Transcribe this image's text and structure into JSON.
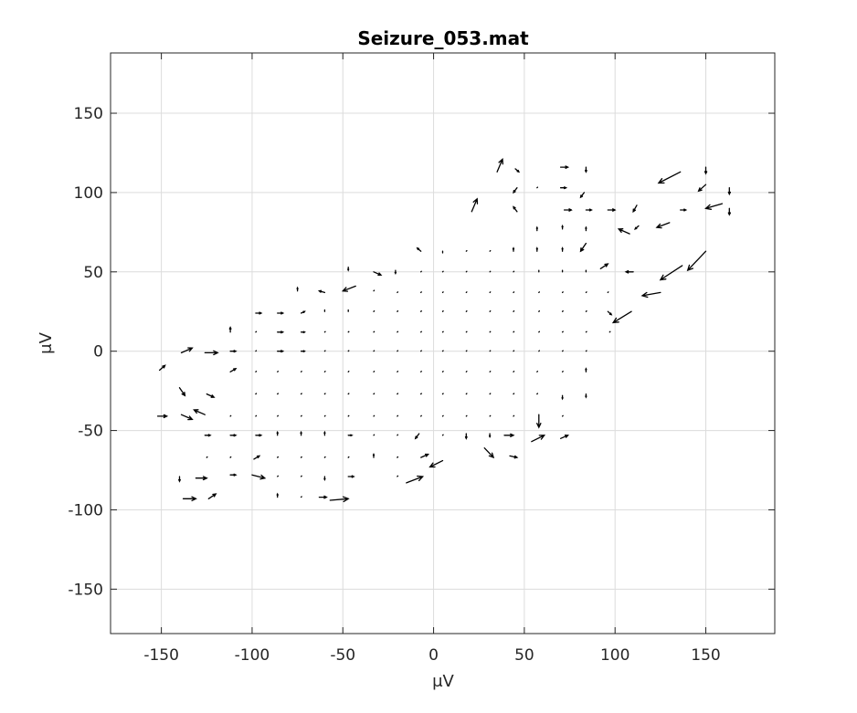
{
  "chart_data": {
    "type": "quiver",
    "title": "Seizure_053.mat",
    "xlabel": "μV",
    "ylabel": "μV",
    "xlim": [
      -178,
      188
    ],
    "ylim": [
      -178,
      188
    ],
    "xticks": [
      -150,
      -100,
      -50,
      0,
      50,
      100,
      150
    ],
    "yticks": [
      -150,
      -100,
      -50,
      0,
      50,
      100,
      150
    ],
    "xtick_labels": [
      "-150",
      "-100",
      "-50",
      "0",
      "50",
      "100",
      "150"
    ],
    "ytick_labels": [
      "-150",
      "-100",
      "-50",
      "0",
      "50",
      "100",
      "150"
    ],
    "grid": true,
    "colors": {
      "arrow": "#000000",
      "grid": "#dcdcdc",
      "axes": "#262626"
    },
    "vectors": [
      {
        "x": 35,
        "y": 113,
        "u": 3,
        "v": 8
      },
      {
        "x": 45,
        "y": 115,
        "u": 2,
        "v": -2
      },
      {
        "x": 70,
        "y": 116,
        "u": 4,
        "v": 0
      },
      {
        "x": 84,
        "y": 116,
        "u": 0,
        "v": -3
      },
      {
        "x": 136,
        "y": 113,
        "u": -12,
        "v": -7
      },
      {
        "x": 150,
        "y": 116,
        "u": 0,
        "v": -4
      },
      {
        "x": 46,
        "y": 103,
        "u": -2,
        "v": -3
      },
      {
        "x": 57,
        "y": 103,
        "u": 0,
        "v": 0
      },
      {
        "x": 70,
        "y": 103,
        "u": 3,
        "v": 0
      },
      {
        "x": 83,
        "y": 100,
        "u": -2,
        "v": -3
      },
      {
        "x": 150,
        "y": 105,
        "u": -4,
        "v": -4
      },
      {
        "x": 163,
        "y": 103,
        "u": 0,
        "v": -4
      },
      {
        "x": 21,
        "y": 88,
        "u": 3,
        "v": 8
      },
      {
        "x": 46,
        "y": 88,
        "u": -2,
        "v": 3
      },
      {
        "x": 72,
        "y": 89,
        "u": 4,
        "v": 0
      },
      {
        "x": 84,
        "y": 89,
        "u": 3,
        "v": 0
      },
      {
        "x": 96,
        "y": 89,
        "u": 4,
        "v": 0
      },
      {
        "x": 108,
        "y": 74,
        "u": -6,
        "v": 3
      },
      {
        "x": 112,
        "y": 92,
        "u": -2,
        "v": -4
      },
      {
        "x": 130,
        "y": 81,
        "u": -7,
        "v": -3
      },
      {
        "x": 136,
        "y": 89,
        "u": 3,
        "v": 0
      },
      {
        "x": 159,
        "y": 93,
        "u": -9,
        "v": -3
      },
      {
        "x": 163,
        "y": 90,
        "u": 0,
        "v": -4
      },
      {
        "x": 57,
        "y": 76,
        "u": 0,
        "v": 2
      },
      {
        "x": 71,
        "y": 77,
        "u": 0,
        "v": 2
      },
      {
        "x": 84,
        "y": 76,
        "u": 0,
        "v": 2
      },
      {
        "x": 113,
        "y": 79,
        "u": -2,
        "v": -2
      },
      {
        "x": -7,
        "y": 63,
        "u": -2,
        "v": 2
      },
      {
        "x": 5,
        "y": 62,
        "u": 0,
        "v": 1
      },
      {
        "x": 18,
        "y": 63,
        "u": 0,
        "v": 0
      },
      {
        "x": 31,
        "y": 63,
        "u": 0,
        "v": 0
      },
      {
        "x": 44,
        "y": 63,
        "u": 0,
        "v": 2
      },
      {
        "x": 57,
        "y": 63,
        "u": 0,
        "v": 2
      },
      {
        "x": 71,
        "y": 63,
        "u": 0,
        "v": 2
      },
      {
        "x": 84,
        "y": 68,
        "u": -3,
        "v": -5
      },
      {
        "x": 150,
        "y": 63,
        "u": -10,
        "v": -12
      },
      {
        "x": 92,
        "y": 52,
        "u": 4,
        "v": 3
      },
      {
        "x": 110,
        "y": 50,
        "u": -4,
        "v": 0
      },
      {
        "x": 137,
        "y": 54,
        "u": -12,
        "v": -9
      },
      {
        "x": -47,
        "y": 53,
        "u": 0,
        "v": -2
      },
      {
        "x": -33,
        "y": 50,
        "u": 4,
        "v": -2
      },
      {
        "x": -21,
        "y": 51,
        "u": 0,
        "v": -2
      },
      {
        "x": -7,
        "y": 50,
        "u": 0,
        "v": 0
      },
      {
        "x": 5,
        "y": 50,
        "u": 0,
        "v": 0
      },
      {
        "x": 18,
        "y": 50,
        "u": 0,
        "v": 0
      },
      {
        "x": 31,
        "y": 50,
        "u": 0,
        "v": 0
      },
      {
        "x": 44,
        "y": 50,
        "u": 0,
        "v": 0
      },
      {
        "x": 58,
        "y": 50,
        "u": 0,
        "v": 1
      },
      {
        "x": 71,
        "y": 50,
        "u": 0,
        "v": 1
      },
      {
        "x": 84,
        "y": 50,
        "u": 0,
        "v": 1
      },
      {
        "x": 125,
        "y": 37,
        "u": -10,
        "v": -2
      },
      {
        "x": -75,
        "y": 38,
        "u": 0,
        "v": 2
      },
      {
        "x": -60,
        "y": 37,
        "u": -3,
        "v": 1
      },
      {
        "x": -43,
        "y": 41,
        "u": -7,
        "v": -3
      },
      {
        "x": -33,
        "y": 38,
        "u": 0,
        "v": 0
      },
      {
        "x": -20,
        "y": 37,
        "u": 0,
        "v": 0
      },
      {
        "x": -7,
        "y": 37,
        "u": 0,
        "v": 0
      },
      {
        "x": 5,
        "y": 37,
        "u": 0,
        "v": 0
      },
      {
        "x": 18,
        "y": 37,
        "u": 0,
        "v": 0
      },
      {
        "x": 31,
        "y": 37,
        "u": 0,
        "v": 0
      },
      {
        "x": 44,
        "y": 37,
        "u": 0,
        "v": 0
      },
      {
        "x": 58,
        "y": 37,
        "u": 0,
        "v": 0
      },
      {
        "x": 71,
        "y": 37,
        "u": 0,
        "v": 0
      },
      {
        "x": 84,
        "y": 37,
        "u": 0,
        "v": 0
      },
      {
        "x": 96,
        "y": 37,
        "u": 0,
        "v": 0
      },
      {
        "x": -98,
        "y": 24,
        "u": 3,
        "v": 0
      },
      {
        "x": -86,
        "y": 24,
        "u": 3,
        "v": 0
      },
      {
        "x": -73,
        "y": 24,
        "u": 2,
        "v": 1
      },
      {
        "x": -60,
        "y": 25,
        "u": 0,
        "v": 1
      },
      {
        "x": -47,
        "y": 25,
        "u": 0,
        "v": 1
      },
      {
        "x": -33,
        "y": 25,
        "u": 0,
        "v": 0
      },
      {
        "x": -20,
        "y": 25,
        "u": 0,
        "v": 0
      },
      {
        "x": -7,
        "y": 25,
        "u": 0,
        "v": 0
      },
      {
        "x": 5,
        "y": 25,
        "u": 0,
        "v": 0
      },
      {
        "x": 18,
        "y": 25,
        "u": 0,
        "v": 0
      },
      {
        "x": 31,
        "y": 25,
        "u": 0,
        "v": 0
      },
      {
        "x": 44,
        "y": 25,
        "u": 0,
        "v": 0
      },
      {
        "x": 58,
        "y": 25,
        "u": 0,
        "v": 0
      },
      {
        "x": 71,
        "y": 25,
        "u": 0,
        "v": 0
      },
      {
        "x": 84,
        "y": 25,
        "u": 0,
        "v": 0
      },
      {
        "x": 96,
        "y": 25,
        "u": 2,
        "v": -2
      },
      {
        "x": 109,
        "y": 25,
        "u": -10,
        "v": -7
      },
      {
        "x": -112,
        "y": 12,
        "u": 0,
        "v": 3
      },
      {
        "x": -98,
        "y": 12,
        "u": 0,
        "v": 0
      },
      {
        "x": -86,
        "y": 12,
        "u": 3,
        "v": 0
      },
      {
        "x": -73,
        "y": 12,
        "u": 2,
        "v": 0
      },
      {
        "x": -60,
        "y": 12,
        "u": 0,
        "v": 0
      },
      {
        "x": -47,
        "y": 12,
        "u": 0,
        "v": 0
      },
      {
        "x": -33,
        "y": 12,
        "u": 0,
        "v": 0
      },
      {
        "x": -20,
        "y": 12,
        "u": 0,
        "v": 0
      },
      {
        "x": -7,
        "y": 12,
        "u": 0,
        "v": 0
      },
      {
        "x": 5,
        "y": 12,
        "u": 0,
        "v": 0
      },
      {
        "x": 18,
        "y": 12,
        "u": 0,
        "v": 0
      },
      {
        "x": 31,
        "y": 12,
        "u": 0,
        "v": 0
      },
      {
        "x": 44,
        "y": 12,
        "u": 0,
        "v": 0
      },
      {
        "x": 58,
        "y": 12,
        "u": 0,
        "v": 0
      },
      {
        "x": 71,
        "y": 12,
        "u": 0,
        "v": 0
      },
      {
        "x": 84,
        "y": 12,
        "u": 0,
        "v": 0
      },
      {
        "x": 97,
        "y": 12,
        "u": 0,
        "v": 0
      },
      {
        "x": -139,
        "y": -1,
        "u": 6,
        "v": 3
      },
      {
        "x": -126,
        "y": -1,
        "u": 7,
        "v": 0
      },
      {
        "x": -112,
        "y": 0,
        "u": 3,
        "v": 0
      },
      {
        "x": -98,
        "y": 0,
        "u": 0,
        "v": 0
      },
      {
        "x": -86,
        "y": 0,
        "u": 3,
        "v": 0
      },
      {
        "x": -73,
        "y": 0,
        "u": 2,
        "v": 0
      },
      {
        "x": -60,
        "y": 0,
        "u": 0,
        "v": 0
      },
      {
        "x": -47,
        "y": 0,
        "u": 0,
        "v": 0
      },
      {
        "x": -33,
        "y": 0,
        "u": 0,
        "v": 0
      },
      {
        "x": -20,
        "y": 0,
        "u": 0,
        "v": 0
      },
      {
        "x": -7,
        "y": 0,
        "u": 0,
        "v": 0
      },
      {
        "x": 5,
        "y": 0,
        "u": 0,
        "v": 0
      },
      {
        "x": 18,
        "y": 0,
        "u": 0,
        "v": 0
      },
      {
        "x": 31,
        "y": 0,
        "u": 0,
        "v": 0
      },
      {
        "x": 44,
        "y": 0,
        "u": 0,
        "v": 0
      },
      {
        "x": 58,
        "y": 0,
        "u": 0,
        "v": 0
      },
      {
        "x": 71,
        "y": 0,
        "u": 0,
        "v": 0
      },
      {
        "x": 84,
        "y": 0,
        "u": 0,
        "v": 0
      },
      {
        "x": -151,
        "y": -12,
        "u": 3,
        "v": 3
      },
      {
        "x": -112,
        "y": -13,
        "u": 3,
        "v": 2
      },
      {
        "x": -98,
        "y": -13,
        "u": 0,
        "v": 0
      },
      {
        "x": -86,
        "y": -13,
        "u": 0,
        "v": 0
      },
      {
        "x": -73,
        "y": -13,
        "u": 0,
        "v": 0
      },
      {
        "x": -60,
        "y": -13,
        "u": 0,
        "v": 0
      },
      {
        "x": -47,
        "y": -13,
        "u": 0,
        "v": 0
      },
      {
        "x": -33,
        "y": -13,
        "u": 0,
        "v": 0
      },
      {
        "x": -20,
        "y": -13,
        "u": 0,
        "v": 0
      },
      {
        "x": -7,
        "y": -13,
        "u": 0,
        "v": 0
      },
      {
        "x": 5,
        "y": -13,
        "u": 0,
        "v": 0
      },
      {
        "x": 18,
        "y": -13,
        "u": 0,
        "v": 0
      },
      {
        "x": 31,
        "y": -13,
        "u": 0,
        "v": 0
      },
      {
        "x": 44,
        "y": -13,
        "u": 0,
        "v": 0
      },
      {
        "x": 57,
        "y": -13,
        "u": 0,
        "v": 0
      },
      {
        "x": 71,
        "y": -13,
        "u": 0,
        "v": 0
      },
      {
        "x": 84,
        "y": -13,
        "u": 0,
        "v": 2
      },
      {
        "x": -140,
        "y": -23,
        "u": 3,
        "v": -5
      },
      {
        "x": -125,
        "y": -27,
        "u": 4,
        "v": -2
      },
      {
        "x": -98,
        "y": -27,
        "u": 0,
        "v": 0
      },
      {
        "x": -86,
        "y": -27,
        "u": 0,
        "v": 0
      },
      {
        "x": -73,
        "y": -27,
        "u": 0,
        "v": 0
      },
      {
        "x": -60,
        "y": -27,
        "u": 0,
        "v": 0
      },
      {
        "x": -47,
        "y": -27,
        "u": 0,
        "v": 0
      },
      {
        "x": -33,
        "y": -27,
        "u": 0,
        "v": 0
      },
      {
        "x": -20,
        "y": -27,
        "u": 0,
        "v": 0
      },
      {
        "x": -7,
        "y": -27,
        "u": 0,
        "v": 0
      },
      {
        "x": 5,
        "y": -27,
        "u": 0,
        "v": 0
      },
      {
        "x": 18,
        "y": -27,
        "u": 0,
        "v": 0
      },
      {
        "x": 31,
        "y": -27,
        "u": 0,
        "v": 0
      },
      {
        "x": 44,
        "y": -27,
        "u": 0,
        "v": 0
      },
      {
        "x": 57,
        "y": -27,
        "u": 0,
        "v": 0
      },
      {
        "x": 71,
        "y": -28,
        "u": 0,
        "v": -2
      },
      {
        "x": 84,
        "y": -27,
        "u": 0,
        "v": -2
      },
      {
        "x": -152,
        "y": -41,
        "u": 5,
        "v": 0
      },
      {
        "x": -139,
        "y": -40,
        "u": 6,
        "v": -3
      },
      {
        "x": -126,
        "y": -40,
        "u": -6,
        "v": 3
      },
      {
        "x": -112,
        "y": -41,
        "u": 0,
        "v": 0
      },
      {
        "x": -98,
        "y": -41,
        "u": 0,
        "v": 0
      },
      {
        "x": -86,
        "y": -41,
        "u": 0,
        "v": 0
      },
      {
        "x": -73,
        "y": -41,
        "u": 0,
        "v": 0
      },
      {
        "x": -60,
        "y": -41,
        "u": 0,
        "v": 0
      },
      {
        "x": -47,
        "y": -41,
        "u": 0,
        "v": 0
      },
      {
        "x": -33,
        "y": -41,
        "u": 0,
        "v": 0
      },
      {
        "x": -20,
        "y": -41,
        "u": 0,
        "v": 0
      },
      {
        "x": -7,
        "y": -41,
        "u": 0,
        "v": 0
      },
      {
        "x": 5,
        "y": -41,
        "u": 0,
        "v": 0
      },
      {
        "x": 18,
        "y": -41,
        "u": 0,
        "v": 0
      },
      {
        "x": 31,
        "y": -41,
        "u": 0,
        "v": 0
      },
      {
        "x": 44,
        "y": -41,
        "u": 0,
        "v": 0
      },
      {
        "x": 58,
        "y": -40,
        "u": 0,
        "v": -8
      },
      {
        "x": 71,
        "y": -41,
        "u": 0,
        "v": 0
      },
      {
        "x": -126,
        "y": -53,
        "u": 3,
        "v": 0
      },
      {
        "x": -112,
        "y": -53,
        "u": 3,
        "v": 0
      },
      {
        "x": -98,
        "y": -53,
        "u": 3,
        "v": 0
      },
      {
        "x": -86,
        "y": -53,
        "u": 0,
        "v": 2
      },
      {
        "x": -73,
        "y": -53,
        "u": 0,
        "v": 2
      },
      {
        "x": -60,
        "y": -53,
        "u": 0,
        "v": 2
      },
      {
        "x": -47,
        "y": -53,
        "u": 2,
        "v": 0
      },
      {
        "x": -33,
        "y": -53,
        "u": 0,
        "v": 0
      },
      {
        "x": -20,
        "y": -53,
        "u": 0,
        "v": 0
      },
      {
        "x": -8,
        "y": -52,
        "u": -2,
        "v": -3
      },
      {
        "x": 5,
        "y": -53,
        "u": 0,
        "v": 0
      },
      {
        "x": 18,
        "y": -52,
        "u": 0,
        "v": -3
      },
      {
        "x": 31,
        "y": -52,
        "u": 0,
        "v": -2
      },
      {
        "x": 39,
        "y": -53,
        "u": 5,
        "v": 0
      },
      {
        "x": 54,
        "y": -57,
        "u": 7,
        "v": 4
      },
      {
        "x": 70,
        "y": -55,
        "u": 4,
        "v": 2
      },
      {
        "x": -125,
        "y": -67,
        "u": 0,
        "v": 0
      },
      {
        "x": -112,
        "y": -67,
        "u": 0,
        "v": 0
      },
      {
        "x": -99,
        "y": -68,
        "u": 3,
        "v": 2
      },
      {
        "x": -86,
        "y": -67,
        "u": 0,
        "v": 0
      },
      {
        "x": -73,
        "y": -67,
        "u": 0,
        "v": 0
      },
      {
        "x": -60,
        "y": -67,
        "u": 0,
        "v": 0
      },
      {
        "x": -47,
        "y": -67,
        "u": 0,
        "v": 0
      },
      {
        "x": -33,
        "y": -67,
        "u": 0,
        "v": 2
      },
      {
        "x": -20,
        "y": -67,
        "u": 0,
        "v": 0
      },
      {
        "x": -7,
        "y": -67,
        "u": 4,
        "v": 2
      },
      {
        "x": 5,
        "y": -69,
        "u": -7,
        "v": -4
      },
      {
        "x": 28,
        "y": -61,
        "u": 5,
        "v": -6
      },
      {
        "x": 42,
        "y": -66,
        "u": 4,
        "v": -1
      },
      {
        "x": -140,
        "y": -79,
        "u": 0,
        "v": -3
      },
      {
        "x": -131,
        "y": -80,
        "u": 6,
        "v": 0
      },
      {
        "x": -112,
        "y": -78,
        "u": 3,
        "v": 0
      },
      {
        "x": -100,
        "y": -78,
        "u": 7,
        "v": -2
      },
      {
        "x": -86,
        "y": -79,
        "u": 0,
        "v": 0
      },
      {
        "x": -73,
        "y": -79,
        "u": 0,
        "v": 0
      },
      {
        "x": -60,
        "y": -79,
        "u": 0,
        "v": -2
      },
      {
        "x": -47,
        "y": -79,
        "u": 3,
        "v": 0
      },
      {
        "x": -20,
        "y": -79,
        "u": 0,
        "v": 0
      },
      {
        "x": -15,
        "y": -83,
        "u": 9,
        "v": 4
      },
      {
        "x": -138,
        "y": -93,
        "u": 7,
        "v": 0
      },
      {
        "x": -124,
        "y": -93,
        "u": 4,
        "v": 3
      },
      {
        "x": -86,
        "y": -92,
        "u": 0,
        "v": 2
      },
      {
        "x": -73,
        "y": -92,
        "u": 0,
        "v": 0
      },
      {
        "x": -63,
        "y": -92,
        "u": 4,
        "v": 0
      },
      {
        "x": -57,
        "y": -94,
        "u": 10,
        "v": 1
      }
    ]
  }
}
